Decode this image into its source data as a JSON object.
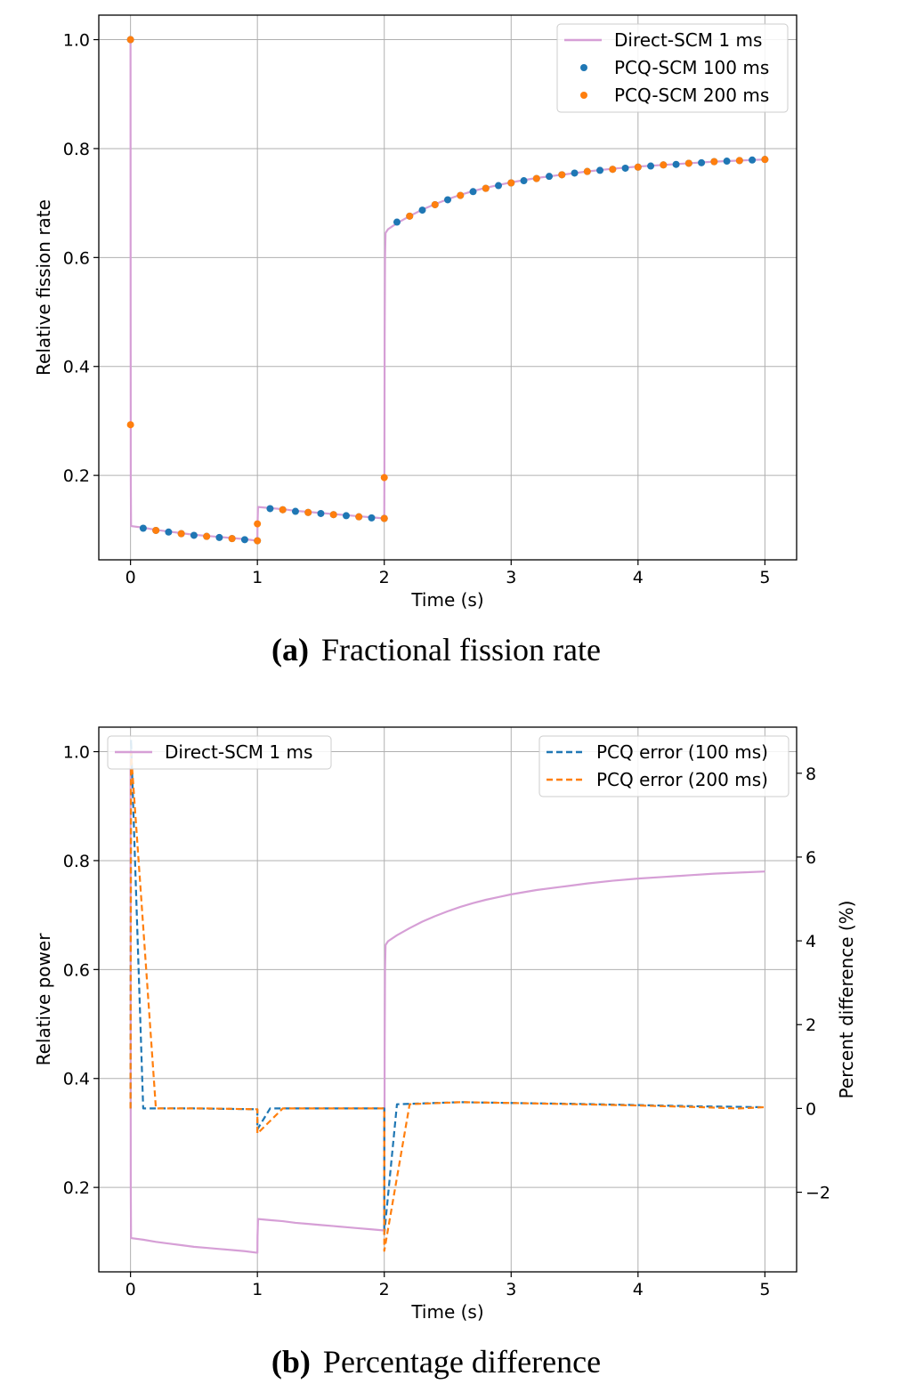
{
  "chart_data": [
    {
      "type": "line",
      "caption_label": "(a)",
      "caption_text": "Fractional fission rate",
      "xlabel": "Time (s)",
      "ylabel": "Relative fission rate",
      "xlim": [
        -0.25,
        5.25
      ],
      "ylim": [
        0.045,
        1.045
      ],
      "xticks": [
        0,
        1,
        2,
        3,
        4,
        5
      ],
      "yticks": [
        0.2,
        0.4,
        0.6,
        0.8,
        1.0
      ],
      "xtick_labels": [
        "0",
        "1",
        "2",
        "3",
        "4",
        "5"
      ],
      "ytick_labels": [
        "0.2",
        "0.4",
        "0.6",
        "0.8",
        "1.0"
      ],
      "grid": true,
      "legend_position": "top-right",
      "series": [
        {
          "name": "Direct-SCM 1 ms",
          "style": "line",
          "color": "#d69fd6",
          "x": [
            0,
            0.001,
            0.002,
            0.004,
            0.1,
            0.2,
            0.3,
            0.4,
            0.5,
            0.6,
            0.7,
            0.8,
            0.9,
            1.0,
            1.001,
            1.005,
            1.1,
            1.2,
            1.3,
            1.4,
            1.5,
            1.6,
            1.7,
            1.8,
            1.9,
            2.0,
            2.001,
            2.003,
            2.006,
            2.01,
            2.03,
            2.1,
            2.2,
            2.3,
            2.4,
            2.5,
            2.6,
            2.7,
            2.8,
            2.9,
            3.0,
            3.2,
            3.4,
            3.6,
            3.8,
            4.0,
            4.2,
            4.4,
            4.6,
            4.8,
            5.0
          ],
          "y": [
            1.0,
            0.5,
            0.2,
            0.107,
            0.104,
            0.1,
            0.097,
            0.094,
            0.091,
            0.089,
            0.087,
            0.085,
            0.083,
            0.08,
            0.11,
            0.142,
            0.14,
            0.138,
            0.135,
            0.133,
            0.131,
            0.129,
            0.127,
            0.125,
            0.123,
            0.121,
            0.2,
            0.45,
            0.6,
            0.645,
            0.652,
            0.663,
            0.676,
            0.688,
            0.698,
            0.707,
            0.715,
            0.722,
            0.728,
            0.733,
            0.738,
            0.746,
            0.752,
            0.758,
            0.763,
            0.767,
            0.77,
            0.773,
            0.776,
            0.778,
            0.78
          ]
        },
        {
          "name": "PCQ-SCM 100 ms",
          "style": "markers",
          "color": "#1f77b4",
          "x": [
            0,
            0.1,
            0.2,
            0.3,
            0.4,
            0.5,
            0.6,
            0.7,
            0.8,
            0.9,
            1.0,
            1.1,
            1.2,
            1.3,
            1.4,
            1.5,
            1.6,
            1.7,
            1.8,
            1.9,
            2.0,
            2.1,
            2.2,
            2.3,
            2.4,
            2.5,
            2.6,
            2.7,
            2.8,
            2.9,
            3.0,
            3.1,
            3.2,
            3.3,
            3.4,
            3.5,
            3.6,
            3.7,
            3.8,
            3.9,
            4.0,
            4.1,
            4.2,
            4.3,
            4.4,
            4.5,
            4.6,
            4.7,
            4.8,
            4.9,
            5.0
          ],
          "y": [
            1.0,
            0.103,
            0.099,
            0.096,
            0.093,
            0.09,
            0.088,
            0.086,
            0.084,
            0.082,
            0.08,
            0.139,
            0.137,
            0.134,
            0.132,
            0.13,
            0.128,
            0.126,
            0.124,
            0.122,
            0.121,
            0.665,
            0.676,
            0.687,
            0.697,
            0.706,
            0.714,
            0.721,
            0.727,
            0.732,
            0.737,
            0.741,
            0.745,
            0.749,
            0.752,
            0.755,
            0.758,
            0.76,
            0.762,
            0.764,
            0.766,
            0.768,
            0.77,
            0.771,
            0.773,
            0.774,
            0.776,
            0.777,
            0.778,
            0.779,
            0.78
          ]
        },
        {
          "name": "PCQ-SCM 200 ms",
          "style": "markers",
          "color": "#ff7f0e",
          "x": [
            0,
            0,
            0.2,
            0.4,
            0.6,
            0.8,
            1.0,
            1.0,
            1.2,
            1.4,
            1.6,
            1.8,
            2.0,
            2.0,
            2.2,
            2.4,
            2.6,
            2.8,
            3.0,
            3.2,
            3.4,
            3.6,
            3.8,
            4.0,
            4.2,
            4.4,
            4.6,
            4.8,
            5.0
          ],
          "y": [
            1.0,
            0.293,
            0.099,
            0.093,
            0.088,
            0.084,
            0.111,
            0.08,
            0.137,
            0.132,
            0.128,
            0.124,
            0.196,
            0.121,
            0.676,
            0.697,
            0.714,
            0.727,
            0.737,
            0.745,
            0.752,
            0.758,
            0.762,
            0.766,
            0.77,
            0.773,
            0.776,
            0.778,
            0.78
          ]
        }
      ]
    },
    {
      "type": "line",
      "caption_label": "(b)",
      "caption_text": "Percentage difference",
      "xlabel": "Time (s)",
      "ylabel": "Relative power",
      "y2label": "Percent difference (%)",
      "xlim": [
        -0.25,
        5.25
      ],
      "ylim": [
        0.045,
        1.045
      ],
      "y2lim": [
        -3.9,
        9.1
      ],
      "xticks": [
        0,
        1,
        2,
        3,
        4,
        5
      ],
      "yticks": [
        0.2,
        0.4,
        0.6,
        0.8,
        1.0
      ],
      "y2ticks": [
        -2,
        0,
        2,
        4,
        6,
        8
      ],
      "xtick_labels": [
        "0",
        "1",
        "2",
        "3",
        "4",
        "5"
      ],
      "ytick_labels": [
        "0.2",
        "0.4",
        "0.6",
        "0.8",
        "1.0"
      ],
      "y2tick_labels": [
        "−2",
        "0",
        "2",
        "4",
        "6",
        "8"
      ],
      "grid": true,
      "legend_position": "top-left (left axis), top-right (right axis)",
      "series": [
        {
          "name": "Direct-SCM 1 ms",
          "axis": "left",
          "style": "line",
          "color": "#d69fd6",
          "x": [
            0,
            0.001,
            0.002,
            0.004,
            0.1,
            0.2,
            0.3,
            0.4,
            0.5,
            0.6,
            0.7,
            0.8,
            0.9,
            1.0,
            1.001,
            1.005,
            1.1,
            1.2,
            1.3,
            1.4,
            1.5,
            1.6,
            1.7,
            1.8,
            1.9,
            2.0,
            2.001,
            2.003,
            2.006,
            2.01,
            2.03,
            2.1,
            2.2,
            2.3,
            2.4,
            2.5,
            2.6,
            2.7,
            2.8,
            2.9,
            3.0,
            3.2,
            3.4,
            3.6,
            3.8,
            4.0,
            4.2,
            4.4,
            4.6,
            4.8,
            5.0
          ],
          "y": [
            1.0,
            0.5,
            0.2,
            0.107,
            0.104,
            0.1,
            0.097,
            0.094,
            0.091,
            0.089,
            0.087,
            0.085,
            0.083,
            0.08,
            0.11,
            0.142,
            0.14,
            0.138,
            0.135,
            0.133,
            0.131,
            0.129,
            0.127,
            0.125,
            0.123,
            0.121,
            0.2,
            0.45,
            0.6,
            0.645,
            0.652,
            0.663,
            0.676,
            0.688,
            0.698,
            0.707,
            0.715,
            0.722,
            0.728,
            0.733,
            0.738,
            0.746,
            0.752,
            0.758,
            0.763,
            0.767,
            0.77,
            0.773,
            0.776,
            0.778,
            0.78
          ]
        },
        {
          "name": "PCQ error (100 ms)",
          "axis": "right",
          "style": "dashed",
          "color": "#1f77b4",
          "x": [
            0,
            0.004,
            0.1,
            0.5,
            1.0,
            1.0,
            1.1,
            1.5,
            2.0,
            2.0,
            2.1,
            2.6,
            3.0,
            3.5,
            4.0,
            4.5,
            5.0
          ],
          "y": [
            0.0,
            8.8,
            0.0,
            0.0,
            -0.02,
            -0.5,
            0.0,
            0.0,
            0.0,
            -3.0,
            0.1,
            0.15,
            0.13,
            0.11,
            0.08,
            0.05,
            0.03
          ]
        },
        {
          "name": "PCQ error (200 ms)",
          "axis": "right",
          "style": "dashed",
          "color": "#ff7f0e",
          "x": [
            0,
            0.004,
            0.2,
            0.6,
            1.0,
            1.0,
            1.2,
            1.6,
            2.0,
            2.0,
            2.2,
            2.6,
            3.0,
            3.5,
            4.0,
            4.5,
            4.8,
            5.0
          ],
          "y": [
            0.0,
            8.5,
            0.0,
            0.0,
            -0.02,
            -0.6,
            0.0,
            0.0,
            0.0,
            -3.4,
            0.1,
            0.15,
            0.13,
            0.1,
            0.07,
            0.03,
            0.0,
            0.03
          ]
        }
      ]
    }
  ]
}
